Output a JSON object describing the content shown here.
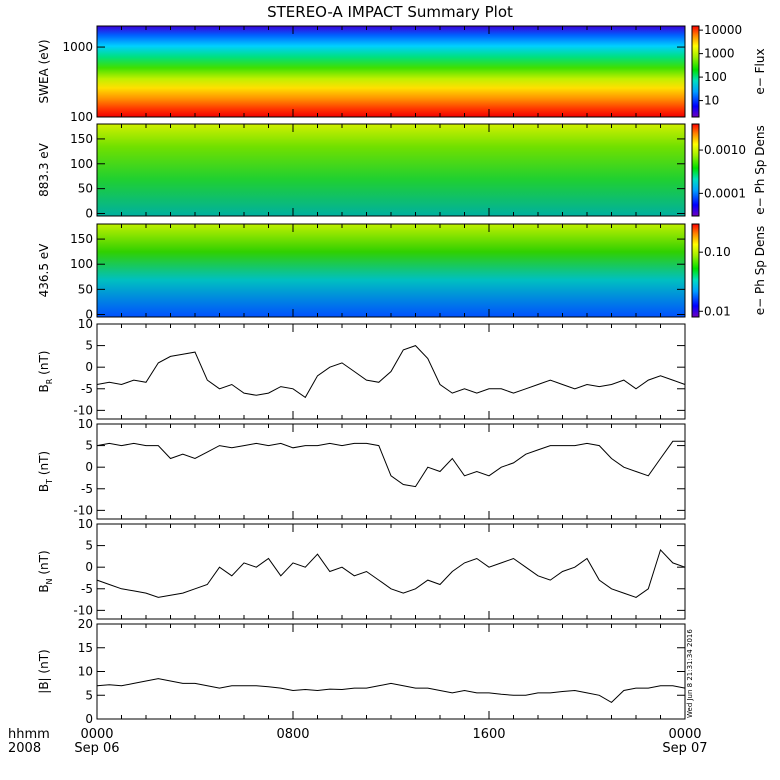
{
  "title": "STEREO-A IMPACT Summary Plot",
  "stamp": "Wed Jun 8 21:31:34 2016",
  "time_axis": {
    "corner_label_1": "hhmm",
    "corner_label_2": "2008",
    "ticks": [
      {
        "hour": 0,
        "label": "0000",
        "sub": "Sep 06"
      },
      {
        "hour": 8,
        "label": "0800",
        "sub": ""
      },
      {
        "hour": 16,
        "label": "1600",
        "sub": ""
      },
      {
        "hour": 24,
        "label": "0000",
        "sub": "Sep 07"
      }
    ],
    "range_hours": [
      0,
      24
    ]
  },
  "spectrograms": [
    {
      "id": "swea",
      "ylabel": "SWEA (eV)",
      "yscale": "log",
      "yticks": [
        {
          "v": 100,
          "label": "100"
        },
        {
          "v": 1000,
          "label": "1000"
        }
      ],
      "ylim": [
        100,
        2000
      ],
      "colorbar_label": "e− Flux",
      "colorbar_scale": "log",
      "colorbar_ticks": [
        {
          "v": 10,
          "label": "10"
        },
        {
          "v": 100,
          "label": "100"
        },
        {
          "v": 1000,
          "label": "1000"
        },
        {
          "v": 10000,
          "label": "10000"
        }
      ],
      "colorbar_range": [
        2,
        15000
      ]
    },
    {
      "id": "pad883",
      "ylabel": "883.3 eV",
      "yscale": "linear",
      "yticks": [
        {
          "v": 0,
          "label": "0"
        },
        {
          "v": 50,
          "label": "50"
        },
        {
          "v": 100,
          "label": "100"
        },
        {
          "v": 150,
          "label": "150"
        }
      ],
      "ylim": [
        -5,
        180
      ],
      "colorbar_label": "e− Ph Sp Dens",
      "colorbar_scale": "log",
      "colorbar_ticks": [
        {
          "v": 0.0001,
          "label": "0.0001"
        },
        {
          "v": 0.001,
          "label": "0.0010"
        }
      ],
      "colorbar_range": [
        3e-05,
        0.004
      ]
    },
    {
      "id": "pad436",
      "ylabel": "436.5 eV",
      "yscale": "linear",
      "yticks": [
        {
          "v": 0,
          "label": "0"
        },
        {
          "v": 50,
          "label": "50"
        },
        {
          "v": 100,
          "label": "100"
        },
        {
          "v": 150,
          "label": "150"
        }
      ],
      "ylim": [
        -5,
        180
      ],
      "colorbar_label": "e− Ph Sp Dens",
      "colorbar_scale": "log",
      "colorbar_ticks": [
        {
          "v": 0.01,
          "label": "0.01"
        },
        {
          "v": 0.1,
          "label": "0.10"
        }
      ],
      "colorbar_range": [
        0.008,
        0.3
      ]
    }
  ],
  "chart_data": [
    {
      "type": "line",
      "id": "br",
      "ylabel": "B",
      "ylabel_sub": "R",
      "ylabel_unit": " (nT)",
      "ylim": [
        -12,
        10
      ],
      "yticks": [
        -10,
        -5,
        0,
        5,
        10
      ],
      "x_hours": [
        0,
        0.5,
        1,
        1.5,
        2,
        2.5,
        3,
        3.5,
        4,
        4.5,
        5,
        5.5,
        6,
        6.5,
        7,
        7.5,
        8,
        8.5,
        9,
        9.5,
        10,
        10.5,
        11,
        11.5,
        12,
        12.5,
        13,
        13.5,
        14,
        14.5,
        15,
        15.5,
        16,
        16.5,
        17,
        17.5,
        18,
        18.5,
        19,
        19.5,
        20,
        20.5,
        21,
        21.5,
        22,
        22.5,
        23,
        23.5,
        24
      ],
      "values": [
        -4,
        -3.5,
        -4,
        -3,
        -3.5,
        1,
        2.5,
        3,
        3.5,
        -3,
        -5,
        -4,
        -6,
        -6.5,
        -6,
        -4.5,
        -5,
        -7,
        -2,
        0,
        1,
        -1,
        -3,
        -3.5,
        -1,
        4,
        5,
        2,
        -4,
        -6,
        -5,
        -6,
        -5,
        -5,
        -6,
        -5,
        -4,
        -3,
        -4,
        -5,
        -4,
        -4.5,
        -4,
        -3,
        -5,
        -3,
        -2,
        -3,
        -4
      ]
    },
    {
      "type": "line",
      "id": "bt",
      "ylabel": "B",
      "ylabel_sub": "T",
      "ylabel_unit": " (nT)",
      "ylim": [
        -12,
        10
      ],
      "yticks": [
        -10,
        -5,
        0,
        5,
        10
      ],
      "x_hours": [
        0,
        0.5,
        1,
        1.5,
        2,
        2.5,
        3,
        3.5,
        4,
        4.5,
        5,
        5.5,
        6,
        6.5,
        7,
        7.5,
        8,
        8.5,
        9,
        9.5,
        10,
        10.5,
        11,
        11.5,
        12,
        12.5,
        13,
        13.5,
        14,
        14.5,
        15,
        15.5,
        16,
        16.5,
        17,
        17.5,
        18,
        18.5,
        19,
        19.5,
        20,
        20.5,
        21,
        21.5,
        22,
        22.5,
        23,
        23.5,
        24
      ],
      "values": [
        5,
        5.5,
        5,
        5.5,
        5,
        5,
        2,
        3,
        2,
        3.5,
        5,
        4.5,
        5,
        5.5,
        5,
        5.5,
        4.5,
        5,
        5,
        5.5,
        5,
        5.5,
        5.5,
        5,
        -2,
        -4,
        -4.5,
        0,
        -1,
        2,
        -2,
        -1,
        -2,
        0,
        1,
        3,
        4,
        5,
        5,
        5,
        5.5,
        5,
        2,
        0,
        -1,
        -2,
        2,
        6,
        6
      ]
    },
    {
      "type": "line",
      "id": "bn",
      "ylabel": "B",
      "ylabel_sub": "N",
      "ylabel_unit": " (nT)",
      "ylim": [
        -12,
        10
      ],
      "yticks": [
        -10,
        -5,
        0,
        5,
        10
      ],
      "x_hours": [
        0,
        0.5,
        1,
        1.5,
        2,
        2.5,
        3,
        3.5,
        4,
        4.5,
        5,
        5.5,
        6,
        6.5,
        7,
        7.5,
        8,
        8.5,
        9,
        9.5,
        10,
        10.5,
        11,
        11.5,
        12,
        12.5,
        13,
        13.5,
        14,
        14.5,
        15,
        15.5,
        16,
        16.5,
        17,
        17.5,
        18,
        18.5,
        19,
        19.5,
        20,
        20.5,
        21,
        21.5,
        22,
        22.5,
        23,
        23.5,
        24
      ],
      "values": [
        -3,
        -4,
        -5,
        -5.5,
        -6,
        -7,
        -6.5,
        -6,
        -5,
        -4,
        0,
        -2,
        1,
        0,
        2,
        -2,
        1,
        0,
        3,
        -1,
        0,
        -2,
        -1,
        -3,
        -5,
        -6,
        -5,
        -3,
        -4,
        -1,
        1,
        2,
        0,
        1,
        2,
        0,
        -2,
        -3,
        -1,
        0,
        2,
        -3,
        -5,
        -6,
        -7,
        -5,
        4,
        1,
        0
      ]
    },
    {
      "type": "line",
      "id": "bmag",
      "ylabel": "|B| (nT)",
      "ylabel_sub": "",
      "ylabel_unit": "",
      "ylim": [
        0,
        20
      ],
      "yticks": [
        0,
        5,
        10,
        15,
        20
      ],
      "x_hours": [
        0,
        0.5,
        1,
        1.5,
        2,
        2.5,
        3,
        3.5,
        4,
        4.5,
        5,
        5.5,
        6,
        6.5,
        7,
        7.5,
        8,
        8.5,
        9,
        9.5,
        10,
        10.5,
        11,
        11.5,
        12,
        12.5,
        13,
        13.5,
        14,
        14.5,
        15,
        15.5,
        16,
        16.5,
        17,
        17.5,
        18,
        18.5,
        19,
        19.5,
        20,
        20.5,
        21,
        21.5,
        22,
        22.5,
        23,
        23.5,
        24
      ],
      "values": [
        7,
        7.2,
        7,
        7.5,
        8,
        8.5,
        8,
        7.5,
        7.5,
        7,
        6.5,
        7,
        7,
        7,
        6.8,
        6.5,
        6,
        6.2,
        6,
        6.3,
        6.2,
        6.5,
        6.5,
        7,
        7.5,
        7,
        6.5,
        6.5,
        6,
        5.5,
        6,
        5.5,
        5.5,
        5.2,
        5,
        5,
        5.5,
        5.5,
        5.8,
        6,
        5.5,
        5,
        3.5,
        6,
        6.5,
        6.5,
        7,
        7,
        6.5
      ]
    }
  ]
}
